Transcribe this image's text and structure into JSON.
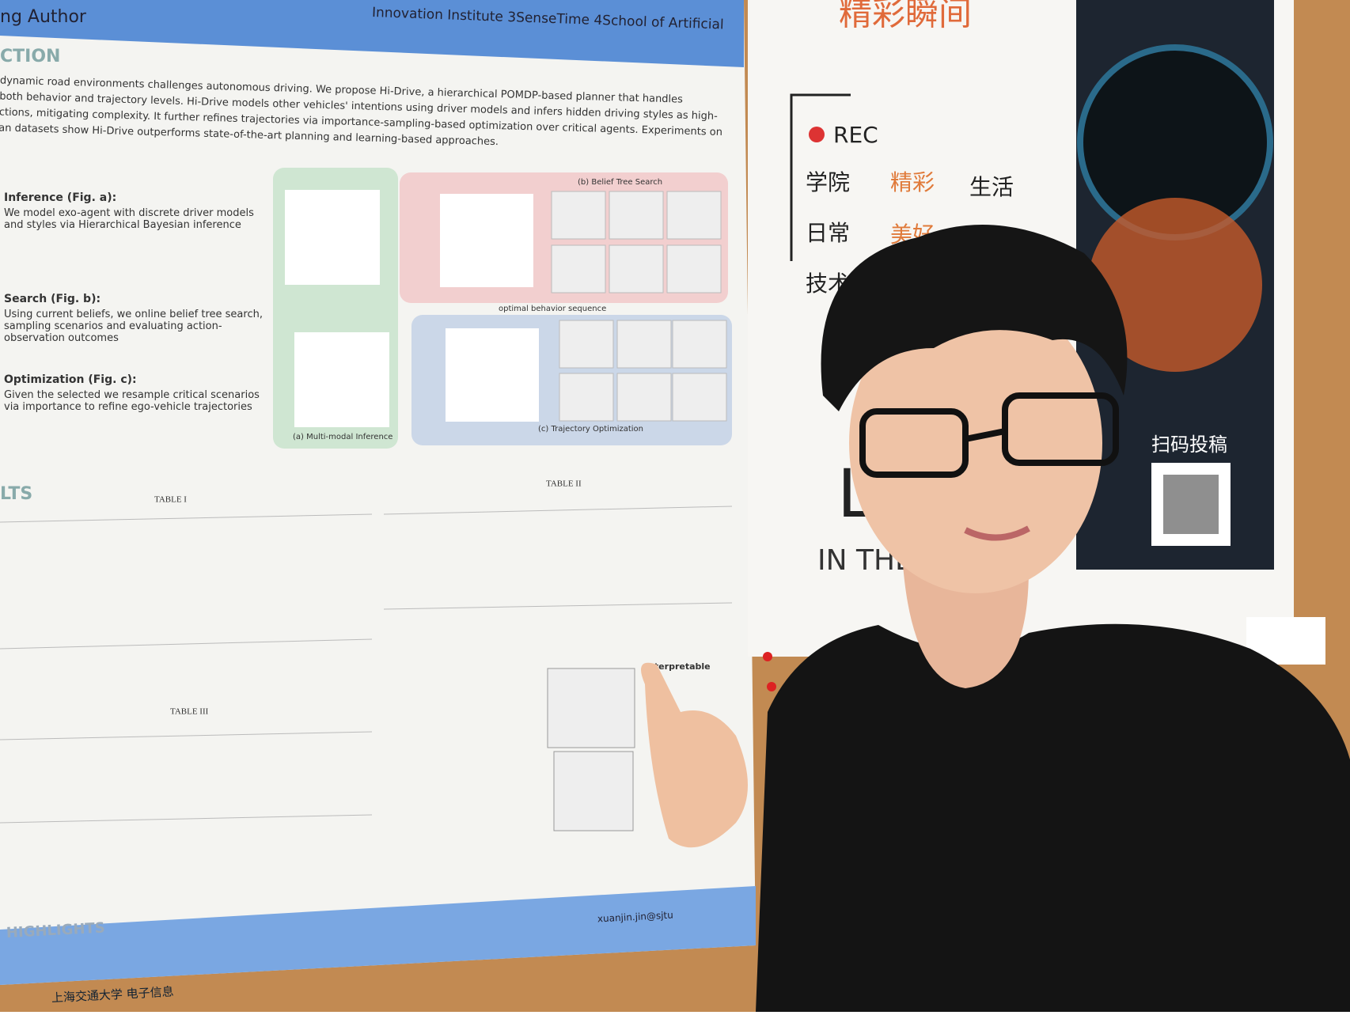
{
  "poster": {
    "affiliation_left": "ng Author",
    "affiliation_right": "Innovation Institute 3SenseTime 4School of Artificial",
    "intro_heading": "CTION",
    "intro_lines": [
      "dynamic road environments challenges autonomous driving. We propose Hi-Drive, a hierarchical POMDP-based planner that handles",
      "both behavior and trajectory levels. Hi-Drive models other vehicles' intentions using driver models and infers hidden driving styles as high-",
      "ctions, mitigating complexity. It further refines trajectories via importance-sampling-based optimization over critical agents. Experiments on",
      "an datasets show Hi-Drive outperforms state-of-the-art planning and learning-based approaches."
    ],
    "method_items": [
      {
        "title": "Inference (Fig. a):",
        "text": "We model exo-agent with discrete driver models and styles via Hierarchical Bayesian inference"
      },
      {
        "title": "Search (Fig. b):",
        "text": "Using current beliefs, we online belief tree search, sampling scenarios and evaluating action-observation outcomes"
      },
      {
        "title": "Optimization (Fig. c):",
        "text": "Given the selected we resample critical scenarios via importance to refine ego-vehicle trajectories"
      }
    ],
    "figure_labels": [
      "(b) Belief Tree Search",
      "optimal behavior sequence",
      "(a) Multi-modal Inference",
      "(c) Trajectory Optimization"
    ],
    "results_heading": "LTS",
    "table_titles": [
      "TABLE I",
      "TABLE II",
      "TABLE III"
    ],
    "interpretable": "Interpretable",
    "highlights_heading": "HIGHLIGHTS",
    "email": "xuanjin.jin@sjtu",
    "footer": "上海交通大学 电子信息"
  },
  "right_poster": {
    "title": "精彩瞬间",
    "rec": "REC",
    "lines": [
      "学院",
      "精彩",
      "生活",
      "日常",
      "美好",
      "技术"
    ],
    "big": "L",
    "in_the": "IN THE",
    "scan": "扫码投稿"
  }
}
